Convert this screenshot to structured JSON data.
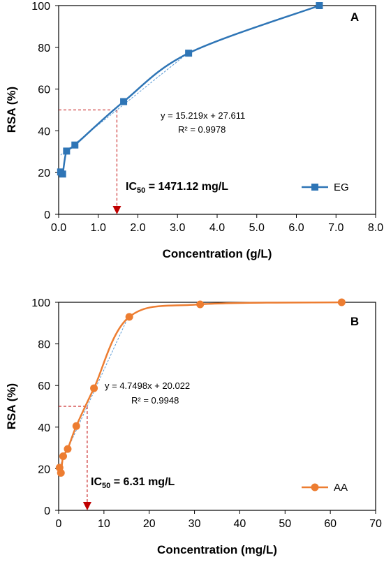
{
  "chart_data": [
    {
      "type": "line",
      "panel_label": "A",
      "xlabel": "Concentration (g/L)",
      "ylabel": "RSA (%)",
      "xlim": [
        0,
        8
      ],
      "ylim": [
        0,
        100
      ],
      "x_ticks": [
        "0.0",
        "1.0",
        "2.0",
        "3.0",
        "4.0",
        "5.0",
        "6.0",
        "7.0",
        "8.0"
      ],
      "y_ticks": [
        "0",
        "20",
        "40",
        "60",
        "80",
        "100"
      ],
      "grid": false,
      "legend_position": "bottom-right",
      "series": [
        {
          "name": "EG",
          "color": "#2E75B6",
          "marker": "square",
          "x": [
            0.05,
            0.1,
            0.2,
            0.41,
            1.64,
            3.28,
            6.58
          ],
          "y": [
            20.3,
            19.3,
            30.3,
            33.2,
            54.0,
            77.2,
            100.0
          ]
        }
      ],
      "trendline": {
        "equation": "y = 15.219x + 27.611",
        "r2": "R² = 0.9978",
        "slope": 15.219,
        "intercept": 27.611,
        "x_range": [
          0.05,
          3.28
        ]
      },
      "ic50": {
        "prefix": "IC",
        "sub": "50",
        "text": " = 1471.12 mg/L",
        "x": 1.471,
        "y": 50
      }
    },
    {
      "type": "line",
      "panel_label": "B",
      "xlabel": "Concentration (mg/L)",
      "ylabel": "RSA (%)",
      "xlim": [
        0,
        70
      ],
      "ylim": [
        0,
        100
      ],
      "x_ticks": [
        "0",
        "10",
        "20",
        "30",
        "40",
        "50",
        "60",
        "70"
      ],
      "y_ticks": [
        "0",
        "20",
        "40",
        "60",
        "80",
        "100"
      ],
      "grid": false,
      "legend_position": "bottom-right",
      "series": [
        {
          "name": "AA",
          "color": "#ED7D31",
          "marker": "circle",
          "x": [
            0.2,
            0.5,
            1.0,
            2.0,
            3.9,
            7.8,
            15.6,
            31.25,
            62.5
          ],
          "y": [
            20.5,
            18.0,
            26.0,
            29.5,
            40.5,
            58.7,
            93.0,
            99.0,
            100.0
          ]
        }
      ],
      "trendline": {
        "equation": "y = 4.7498x + 20.022",
        "r2": "R² = 0.9948",
        "slope": 4.7498,
        "intercept": 20.022,
        "x_range": [
          0.2,
          15.6
        ]
      },
      "ic50": {
        "prefix": "IC",
        "sub": "50",
        "text": " = 6.31 mg/L",
        "x": 6.31,
        "y": 50
      }
    }
  ]
}
